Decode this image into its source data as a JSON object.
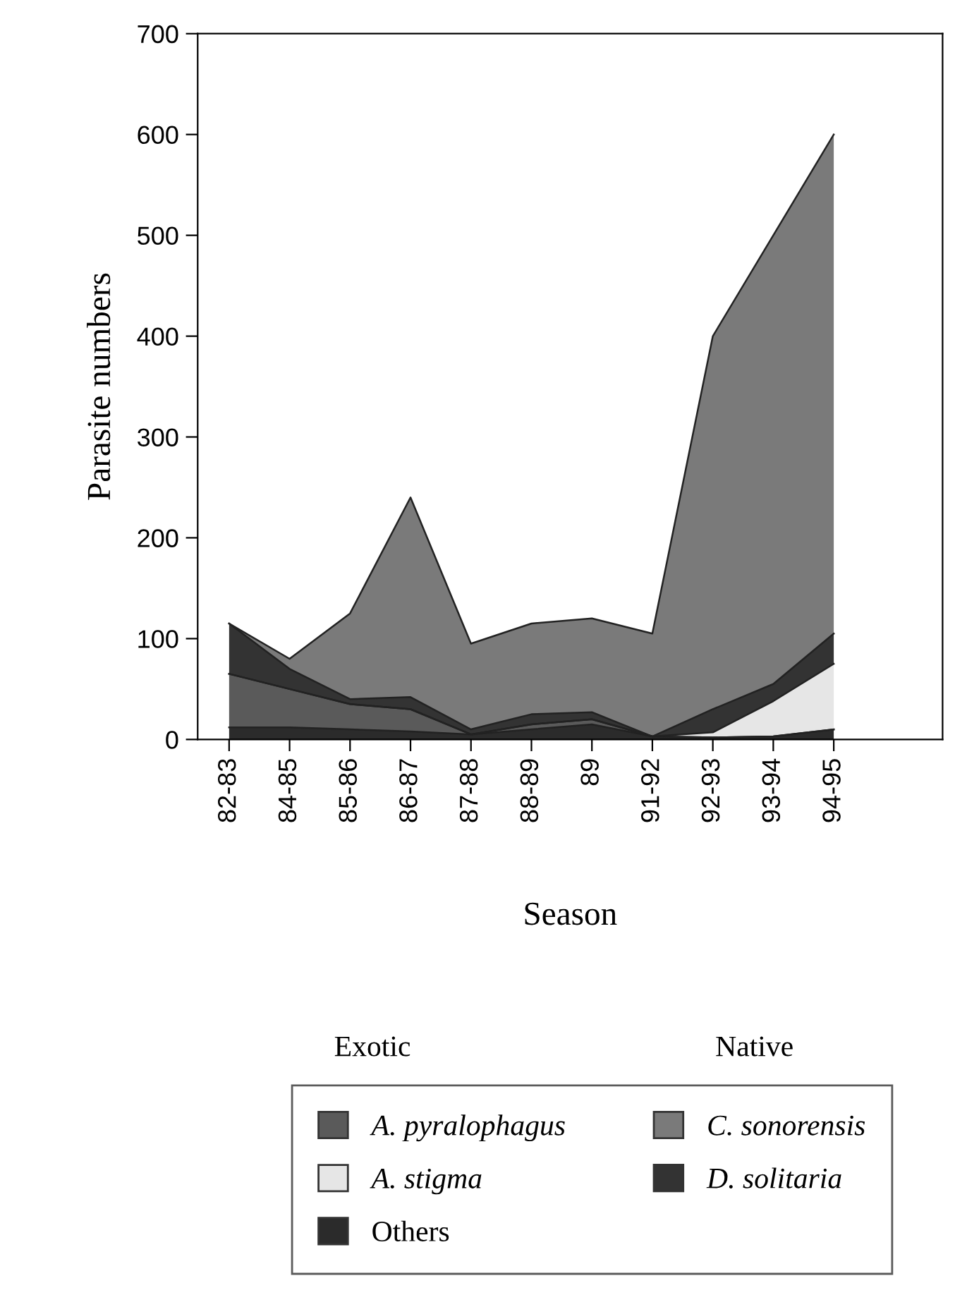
{
  "chart_data": {
    "type": "area",
    "stacked": true,
    "xlabel": "Season",
    "ylabel": "Parasite numbers",
    "categories": [
      "82-83",
      "84-85",
      "85-86",
      "86-87",
      "87-88",
      "88-89",
      "89",
      "91-92",
      "92-93",
      "93-94",
      "94-95"
    ],
    "ylim": [
      0,
      700
    ],
    "yticks": [
      0,
      100,
      200,
      300,
      400,
      500,
      600,
      700
    ],
    "grid": false,
    "legend": "bottom",
    "annotations": [
      "Exotic",
      "Native"
    ],
    "series": [
      {
        "name": "Others",
        "color": "#2b2b2b",
        "values": [
          12,
          12,
          10,
          8,
          5,
          10,
          15,
          3,
          2,
          3,
          10
        ]
      },
      {
        "name": "A. pyralophagus",
        "color": "#5a5a5a",
        "values": [
          53,
          38,
          25,
          22,
          0,
          5,
          5,
          0,
          0,
          0,
          0
        ]
      },
      {
        "name": "A. stigma",
        "color": "#e6e6e6",
        "values": [
          0,
          0,
          0,
          0,
          0,
          0,
          0,
          0,
          5,
          35,
          65
        ]
      },
      {
        "name": "D. solitaria",
        "color": "#333333",
        "values": [
          50,
          20,
          5,
          12,
          5,
          10,
          7,
          0,
          23,
          17,
          30
        ]
      },
      {
        "name": "C. sonorensis",
        "color": "#7a7a7a",
        "values": [
          0,
          10,
          85,
          198,
          85,
          90,
          93,
          102,
          370,
          445,
          495
        ]
      }
    ]
  }
}
